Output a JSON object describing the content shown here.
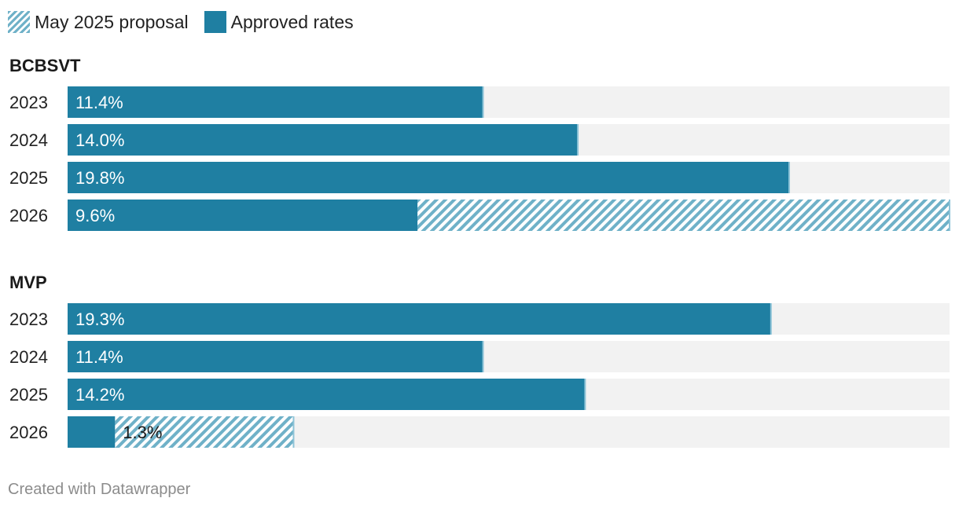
{
  "colors": {
    "approved": "#1f7fa2",
    "proposal": "#6fb1c8",
    "track": "#f2f2f2",
    "divider": "#8ec4d8"
  },
  "legend": {
    "proposal_label": "May 2025 proposal",
    "approved_label": "Approved rates"
  },
  "footer": {
    "credit": "Created with Datawrapper"
  },
  "chart_data": {
    "type": "bar",
    "orientation": "horizontal",
    "xlim": [
      0,
      24.2
    ],
    "groups": [
      {
        "name": "BCBSVT",
        "rows": [
          {
            "year": "2023",
            "approved": 11.4,
            "proposal": 11.4,
            "label": "11.4%"
          },
          {
            "year": "2024",
            "approved": 14.0,
            "proposal": 14.0,
            "label": "14.0%"
          },
          {
            "year": "2025",
            "approved": 19.8,
            "proposal": 19.8,
            "label": "19.8%"
          },
          {
            "year": "2026",
            "approved": 9.6,
            "proposal": 24.2,
            "label": "9.6%"
          }
        ]
      },
      {
        "name": "MVP",
        "rows": [
          {
            "year": "2023",
            "approved": 19.3,
            "proposal": 19.3,
            "label": "19.3%"
          },
          {
            "year": "2024",
            "approved": 11.4,
            "proposal": 11.4,
            "label": "11.4%"
          },
          {
            "year": "2025",
            "approved": 14.2,
            "proposal": 14.2,
            "label": "14.2%"
          },
          {
            "year": "2026",
            "approved": 1.3,
            "proposal": 6.2,
            "label": "1.3%"
          }
        ]
      }
    ]
  }
}
